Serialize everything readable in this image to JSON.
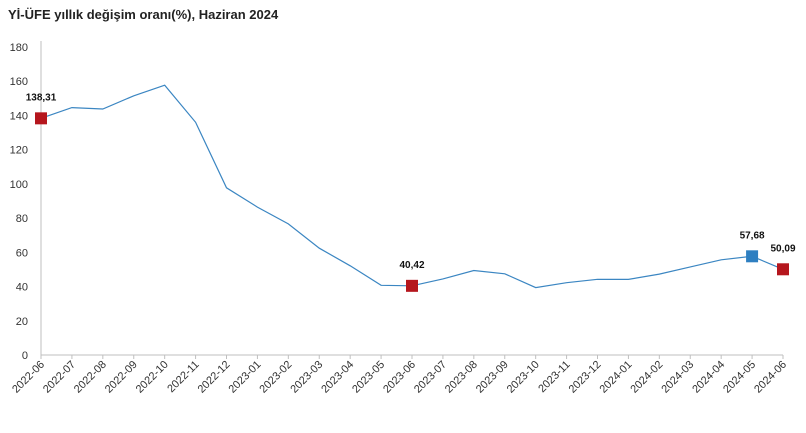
{
  "chart_data": {
    "type": "line",
    "title": "Yİ-ÜFE yıllık değişim oranı(%), Haziran 2024",
    "xlabel": "",
    "ylabel": "",
    "ylim": [
      0,
      180
    ],
    "yticks": [
      0,
      20,
      40,
      60,
      80,
      100,
      120,
      140,
      160,
      180
    ],
    "grid": false,
    "legend": "none",
    "categories": [
      "2022-06",
      "2022-07",
      "2022-08",
      "2022-09",
      "2022-10",
      "2022-11",
      "2022-12",
      "2023-01",
      "2023-02",
      "2023-03",
      "2023-04",
      "2023-05",
      "2023-06",
      "2023-07",
      "2023-08",
      "2023-09",
      "2023-10",
      "2023-11",
      "2023-12",
      "2024-01",
      "2024-02",
      "2024-03",
      "2024-04",
      "2024-05",
      "2024-06"
    ],
    "series": [
      {
        "values": [
          138.31,
          144.61,
          143.75,
          151.5,
          157.69,
          136.02,
          97.72,
          86.46,
          76.61,
          62.43,
          52.11,
          40.76,
          40.42,
          44.5,
          49.41,
          47.44,
          39.39,
          42.25,
          44.22,
          44.2,
          47.29,
          51.47,
          55.66,
          57.68,
          50.09
        ],
        "color": "#3b86c2"
      }
    ],
    "markers": [
      {
        "index": 0,
        "label": "138,31",
        "color": "#b5161d"
      },
      {
        "index": 12,
        "label": "40,42",
        "color": "#b5161d"
      },
      {
        "index": 23,
        "label": "57,68",
        "color": "#2e7fc1"
      },
      {
        "index": 24,
        "label": "50,09",
        "color": "#b5161d"
      }
    ],
    "axis_color": "#bfbfbf"
  }
}
